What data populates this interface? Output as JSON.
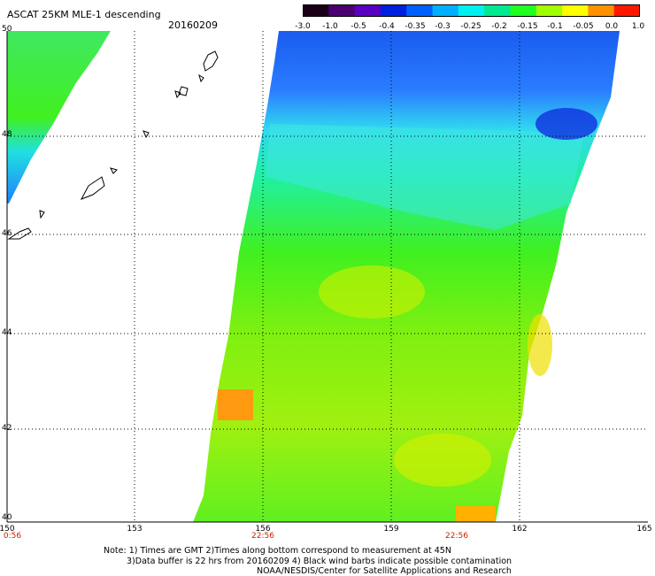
{
  "header": {
    "title": "ASCAT 25KM MLE-1 descending",
    "date": "20160209"
  },
  "colorbar": {
    "labels": [
      "-3.0",
      "-1.0",
      "-0.5",
      "-0.4",
      "-0.35",
      "-0.3",
      "-0.25",
      "-0.2",
      "-0.15",
      "-0.1",
      "-0.05",
      "0.0",
      "1.0"
    ],
    "colors": [
      "#1a0016",
      "#4a0070",
      "#5a00c0",
      "#0020e0",
      "#0060ff",
      "#00b0ff",
      "#00f0f0",
      "#00e890",
      "#20ff20",
      "#a0ff00",
      "#ffff00",
      "#ff9000",
      "#ff1800"
    ]
  },
  "map": {
    "lat_labels": [
      "50",
      "48",
      "46",
      "44",
      "42",
      "40"
    ],
    "lon_labels": [
      "150",
      "153",
      "156",
      "159",
      "162",
      "165"
    ],
    "time_labels": [
      {
        "lon": "150",
        "text": "0:56"
      },
      {
        "lon": "156",
        "text": "22:56"
      },
      {
        "lon": "160.5",
        "text": "22:56"
      }
    ]
  },
  "notes": {
    "line1": "Note: 1) Times are GMT 2)Times along bottom correspond to measurement at 45N",
    "line2": "3)Data buffer is 22 hrs from 20160209 4) Black wind barbs indicate possible contamination",
    "line3": "NOAA/NESDIS/Center for Satellite Applications and Research"
  }
}
